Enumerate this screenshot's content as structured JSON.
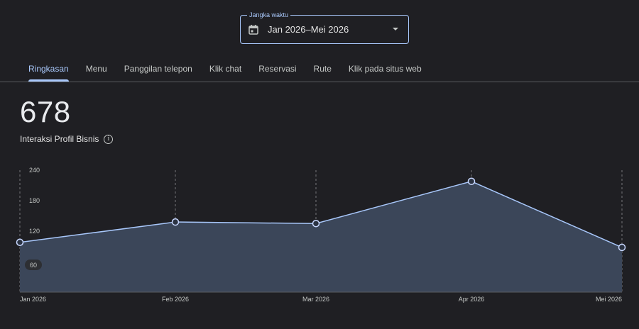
{
  "range_picker": {
    "legend": "Jangka waktu",
    "value": "Jan 2026–Mei 2026",
    "icon": "calendar-icon"
  },
  "tabs": [
    {
      "label": "Ringkasan",
      "active": true
    },
    {
      "label": "Menu",
      "active": false
    },
    {
      "label": "Panggilan telepon",
      "active": false
    },
    {
      "label": "Klik chat",
      "active": false
    },
    {
      "label": "Reservasi",
      "active": false
    },
    {
      "label": "Rute",
      "active": false
    },
    {
      "label": "Klik pada situs web",
      "active": false
    }
  ],
  "metric": {
    "value": "678",
    "label": "Interaksi Profil Bisnis",
    "info_icon": "info-icon"
  },
  "colors": {
    "accent": "#a8c7fa",
    "line": "#a8c7fa",
    "area": "#3b4659",
    "background": "#1f1f23"
  },
  "chart_data": {
    "type": "area",
    "x": [
      "Jan 2026",
      "Feb 2026",
      "Mar 2026",
      "Apr 2026",
      "Mei 2026"
    ],
    "values": [
      98,
      138,
      135,
      218,
      88
    ],
    "yticks": [
      "240",
      "180",
      "120",
      "60"
    ],
    "ytick_values": [
      240,
      180,
      120,
      60
    ],
    "ylim": [
      0,
      240
    ],
    "grid": "vertical-dashed"
  }
}
